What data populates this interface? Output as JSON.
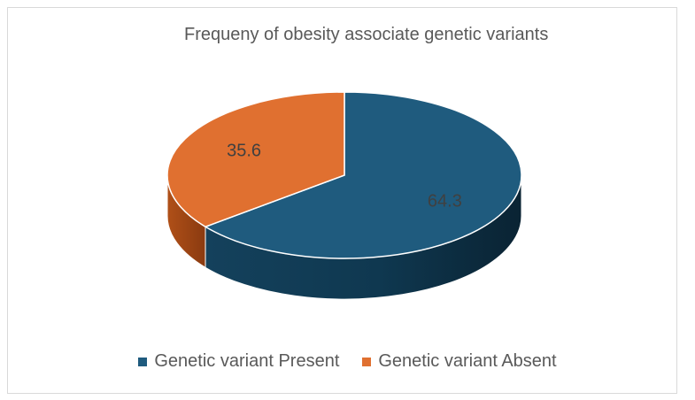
{
  "chart_data": {
    "type": "pie",
    "title": "Frequeny of obesity associate genetic variants",
    "slices": [
      {
        "label": "Genetic variant Present",
        "value": 64.3,
        "color": "#1f5b7e"
      },
      {
        "label": "Genetic variant Absent",
        "value": 35.6,
        "color": "#e07030"
      }
    ],
    "style": "3d",
    "legend_position": "bottom"
  }
}
